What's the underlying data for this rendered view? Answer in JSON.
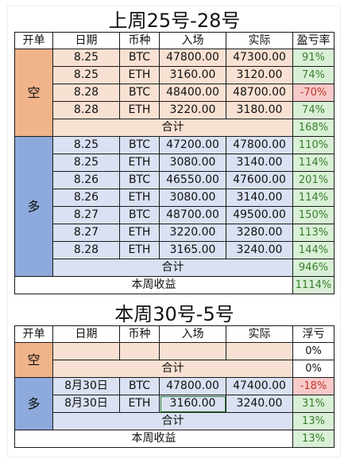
{
  "section1": {
    "title": "上周25号-28号",
    "headers": [
      "开单",
      "日期",
      "币种",
      "入场",
      "实际",
      "盈亏率"
    ],
    "short": {
      "label": "空",
      "rows": [
        {
          "date": "8.25",
          "coin": "BTC",
          "entry": "47800.00",
          "actual": "47300.00",
          "pnl": "91%",
          "pnl_status": "gain"
        },
        {
          "date": "8.25",
          "coin": "ETH",
          "entry": "3160.00",
          "actual": "3120.00",
          "pnl": "74%",
          "pnl_status": "gain"
        },
        {
          "date": "8.28",
          "coin": "BTC",
          "entry": "48400.00",
          "actual": "48700.00",
          "pnl": "-70%",
          "pnl_status": "loss"
        },
        {
          "date": "8.28",
          "coin": "ETH",
          "entry": "3220.00",
          "actual": "3180.00",
          "pnl": "74%",
          "pnl_status": "gain"
        }
      ],
      "total_label": "合计",
      "total": "168%"
    },
    "long": {
      "label": "多",
      "rows": [
        {
          "date": "8.25",
          "coin": "BTC",
          "entry": "47200.00",
          "actual": "47800.00",
          "pnl": "110%",
          "pnl_status": "gain"
        },
        {
          "date": "8.25",
          "coin": "ETH",
          "entry": "3080.00",
          "actual": "3140.00",
          "pnl": "114%",
          "pnl_status": "gain"
        },
        {
          "date": "8.26",
          "coin": "BTC",
          "entry": "46550.00",
          "actual": "47600.00",
          "pnl": "201%",
          "pnl_status": "gain"
        },
        {
          "date": "8.26",
          "coin": "ETH",
          "entry": "3080.00",
          "actual": "3140.00",
          "pnl": "114%",
          "pnl_status": "gain"
        },
        {
          "date": "8.27",
          "coin": "BTC",
          "entry": "48700.00",
          "actual": "49500.00",
          "pnl": "150%",
          "pnl_status": "gain"
        },
        {
          "date": "8.27",
          "coin": "ETH",
          "entry": "3220.00",
          "actual": "3280.00",
          "pnl": "113%",
          "pnl_status": "gain"
        },
        {
          "date": "8.28",
          "coin": "ETH",
          "entry": "3165.00",
          "actual": "3240.00",
          "pnl": "144%",
          "pnl_status": "gain"
        }
      ],
      "total_label": "合计",
      "total": "946%"
    },
    "week_label": "本周收益",
    "week_total": "1114%"
  },
  "section2": {
    "title": "本周30号-5号",
    "headers": [
      "开单",
      "日期",
      "币种",
      "入场",
      "实际",
      "浮亏"
    ],
    "short": {
      "label": "空",
      "rows": [
        {
          "date": "",
          "coin": "",
          "entry": "",
          "actual": "",
          "pnl": "0%",
          "pnl_status": "neutral"
        }
      ],
      "total_label": "合计",
      "total": "0%"
    },
    "long": {
      "label": "多",
      "rows": [
        {
          "date": "8月30日",
          "coin": "BTC",
          "entry": "47800.00",
          "actual": "47400.00",
          "pnl": "-18%",
          "pnl_status": "loss"
        },
        {
          "date": "8月30日",
          "coin": "ETH",
          "entry": "3160.00",
          "actual": "3240.00",
          "pnl": "31%",
          "pnl_status": "gain"
        }
      ],
      "total_label": "合计",
      "total": "13%"
    },
    "week_label": "本周收益",
    "week_total": "13%"
  },
  "colors": {
    "short_side": "#f1b38a",
    "short_row": "#f8e1d2",
    "long_side": "#8ea9db",
    "long_row": "#d9e1f2",
    "gain": "#d9f0d6",
    "loss": "#f8c9c9"
  }
}
